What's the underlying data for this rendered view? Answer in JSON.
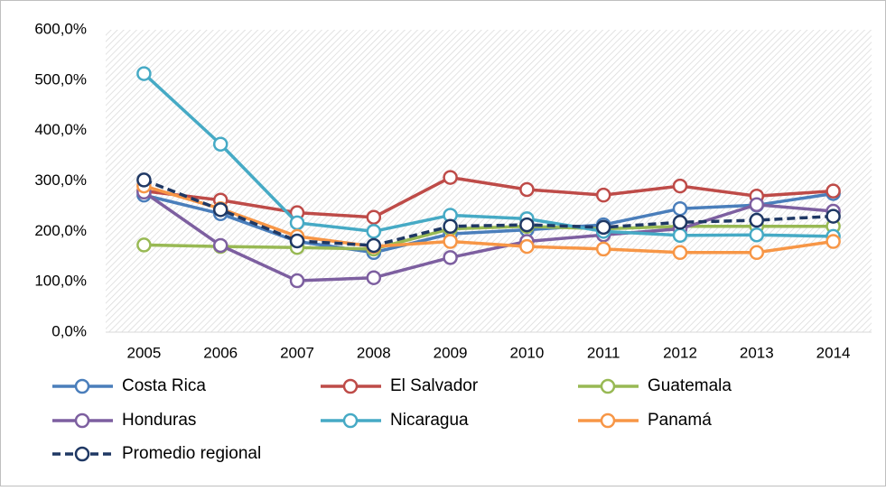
{
  "chart_data": {
    "type": "line",
    "categories": [
      "2005",
      "2006",
      "2007",
      "2008",
      "2009",
      "2010",
      "2011",
      "2012",
      "2013",
      "2014"
    ],
    "ylim": [
      0,
      600
    ],
    "yticks": [
      {
        "value": 0,
        "label": "0,0%"
      },
      {
        "value": 100,
        "label": "100,0%"
      },
      {
        "value": 200,
        "label": "200,0%"
      },
      {
        "value": 300,
        "label": "300,0%"
      },
      {
        "value": 400,
        "label": "400,0%"
      },
      {
        "value": 500,
        "label": "500,0%"
      },
      {
        "value": 600,
        "label": "600,0%"
      }
    ],
    "series": [
      {
        "name": "Costa Rica",
        "color": "#4a7ebb",
        "values": [
          272,
          235,
          180,
          158,
          195,
          203,
          213,
          245,
          252,
          275
        ]
      },
      {
        "name": "El Salvador",
        "color": "#be4b48",
        "values": [
          280,
          262,
          237,
          228,
          307,
          283,
          272,
          290,
          270,
          280
        ]
      },
      {
        "name": "Guatemala",
        "color": "#98b954",
        "values": [
          173,
          170,
          168,
          165,
          205,
          210,
          205,
          210,
          210,
          210
        ]
      },
      {
        "name": "Honduras",
        "color": "#7d5fa0",
        "values": [
          278,
          172,
          102,
          108,
          148,
          180,
          193,
          205,
          253,
          240
        ]
      },
      {
        "name": "Nicaragua",
        "color": "#46aac5",
        "values": [
          513,
          373,
          217,
          200,
          232,
          225,
          200,
          192,
          193,
          190
        ]
      },
      {
        "name": "Panamá",
        "color": "#f79646",
        "values": [
          290,
          245,
          190,
          170,
          180,
          170,
          165,
          158,
          158,
          180
        ]
      },
      {
        "name": "Promedio regional",
        "color": "#1f3864",
        "dashed": true,
        "values": [
          302,
          243,
          181,
          172,
          210,
          213,
          208,
          218,
          222,
          230
        ]
      }
    ]
  }
}
